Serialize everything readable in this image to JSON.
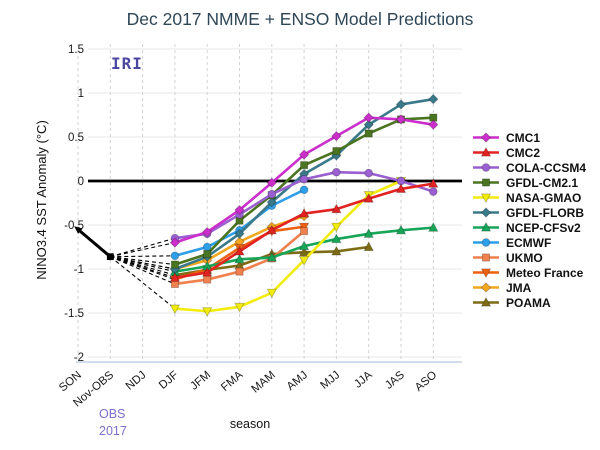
{
  "title": "Dec 2017 NMME + ENSO Model Predictions",
  "watermark": "IRI",
  "obs_annotation": {
    "line1": "OBS",
    "line2": "2017"
  },
  "colors": {
    "title_text": "#2e4656",
    "axis_line": "#b9c7de",
    "grid_horizontal": "#e7e7e7",
    "grid_vertical": "#d2d2d2",
    "zero_line": "#000000",
    "obs_line": "#000000",
    "iri_text": "#4b48a1",
    "obs_text": "#7c6fc9"
  },
  "chart_data": {
    "type": "line",
    "title": "Dec 2017 NMME + ENSO Model Predictions",
    "xlabel": "season",
    "ylabel": "NINO3.4 SST Anomaly (°C)",
    "ylim": [
      -2.05,
      1.6
    ],
    "yticks": [
      1.5,
      1,
      0.5,
      0,
      -0.5,
      -1,
      -1.5,
      -2
    ],
    "grid": true,
    "legend_position": "right",
    "categories": [
      "SON",
      "Nov-OBS",
      "NDJ",
      "DJF",
      "JFM",
      "FMA",
      "MAM",
      "AMJ",
      "MJJ",
      "JJA",
      "JAS",
      "ASO"
    ],
    "observation": {
      "name": "OBS",
      "color": "#000000",
      "points": [
        {
          "x": "SON",
          "y": -0.55
        },
        {
          "x": "Nov-OBS",
          "y": -0.86
        }
      ]
    },
    "fan_from": "Nov-OBS",
    "series": [
      {
        "name": "CMC1",
        "color": "#cb2ecb",
        "marker": "diamond",
        "values": [
          null,
          null,
          null,
          -0.7,
          -0.58,
          -0.33,
          -0.02,
          0.3,
          0.51,
          0.72,
          0.7,
          0.64
        ]
      },
      {
        "name": "CMC2",
        "color": "#e32222",
        "marker": "triangle-up",
        "values": [
          null,
          null,
          null,
          -1.1,
          -1.04,
          -0.8,
          -0.56,
          -0.37,
          -0.32,
          -0.2,
          -0.09,
          -0.03
        ]
      },
      {
        "name": "COLA-CCSM4",
        "color": "#9a5fd1",
        "marker": "circle",
        "values": [
          null,
          null,
          null,
          -0.65,
          -0.6,
          -0.38,
          -0.15,
          0.02,
          0.1,
          0.09,
          0.0,
          -0.12
        ]
      },
      {
        "name": "GFDL-CM2.1",
        "color": "#4a7420",
        "marker": "square",
        "values": [
          null,
          null,
          null,
          -0.95,
          -0.83,
          -0.45,
          -0.16,
          0.18,
          0.34,
          0.54,
          0.7,
          0.72
        ]
      },
      {
        "name": "NASA-GMAO",
        "color": "#f2ec0b",
        "marker": "triangle-down",
        "values": [
          null,
          null,
          null,
          -1.45,
          -1.48,
          -1.43,
          -1.27,
          -0.9,
          -0.52,
          -0.16,
          0.0,
          null
        ]
      },
      {
        "name": "GFDL-FLORB",
        "color": "#39798a",
        "marker": "diamond",
        "values": [
          null,
          null,
          null,
          -1.0,
          -0.86,
          -0.6,
          -0.24,
          0.08,
          0.29,
          0.64,
          0.87,
          0.93
        ]
      },
      {
        "name": "NCEP-CFSv2",
        "color": "#17a558",
        "marker": "triangle-up",
        "values": [
          null,
          null,
          null,
          -1.03,
          -0.97,
          -0.89,
          -0.87,
          -0.74,
          -0.66,
          -0.6,
          -0.56,
          -0.53
        ]
      },
      {
        "name": "ECMWF",
        "color": "#2d9fe8",
        "marker": "circle",
        "values": [
          null,
          null,
          null,
          -0.85,
          -0.75,
          -0.56,
          -0.28,
          -0.1,
          null,
          null,
          null,
          null
        ]
      },
      {
        "name": "UKMO",
        "color": "#f0804d",
        "marker": "square",
        "values": [
          null,
          null,
          null,
          -1.17,
          -1.12,
          -1.03,
          -0.88,
          -0.57,
          null,
          null,
          null,
          null
        ]
      },
      {
        "name": "Meteo France",
        "color": "#ee6111",
        "marker": "triangle-down",
        "values": [
          null,
          null,
          null,
          -1.12,
          -1.0,
          -0.76,
          -0.57,
          -0.52,
          null,
          null,
          null,
          null
        ]
      },
      {
        "name": "JMA",
        "color": "#f3a71e",
        "marker": "diamond",
        "values": [
          null,
          null,
          null,
          -1.0,
          -0.9,
          -0.69,
          -0.52,
          -0.4,
          null,
          null,
          null,
          null
        ]
      },
      {
        "name": "POAMA",
        "color": "#7e6c15",
        "marker": "triangle-up",
        "values": [
          null,
          null,
          null,
          -1.07,
          -1.01,
          -0.96,
          -0.83,
          -0.81,
          -0.8,
          -0.75,
          null,
          null
        ]
      }
    ]
  }
}
